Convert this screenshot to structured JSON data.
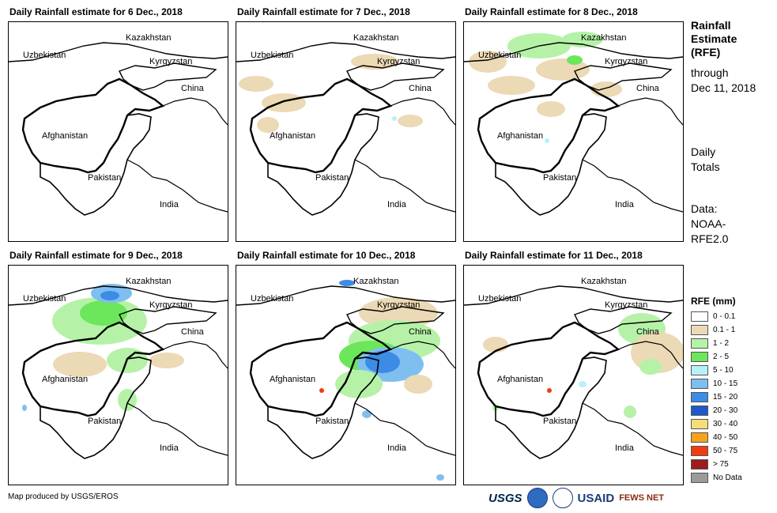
{
  "panels": [
    {
      "title": "Daily Rainfall estimate for 6 Dec., 2018"
    },
    {
      "title": "Daily Rainfall estimate for 7 Dec., 2018"
    },
    {
      "title": "Daily Rainfall estimate for 8 Dec., 2018"
    },
    {
      "title": "Daily Rainfall estimate for 9 Dec., 2018"
    },
    {
      "title": "Daily Rainfall estimate for 10 Dec., 2018"
    },
    {
      "title": "Daily Rainfall estimate for 11 Dec., 2018"
    }
  ],
  "places": {
    "kazakhstan": "Kazakhstan",
    "uzbekistan": "Uzbekistan",
    "kyrgyzstan": "Kyrgyzstan",
    "china": "China",
    "afghanistan": "Afghanistan",
    "pakistan": "Pakistan",
    "india": "India"
  },
  "sidebar": {
    "title_lines": [
      "Rainfall",
      "Estimate",
      "(RFE)"
    ],
    "through_lines": [
      "through",
      "Dec 11, 2018"
    ],
    "daily_lines": [
      "Daily",
      "Totals"
    ],
    "data_lines": [
      "Data:",
      "NOAA-",
      "RFE2.0"
    ]
  },
  "legend": {
    "title": "RFE (mm)",
    "items": [
      {
        "label": "0 - 0.1",
        "color": "#ffffff"
      },
      {
        "label": "0.1 - 1",
        "color": "#ecd9b5"
      },
      {
        "label": "1 - 2",
        "color": "#b5f2a8"
      },
      {
        "label": "2 - 5",
        "color": "#6ce65a"
      },
      {
        "label": "5 - 10",
        "color": "#b8f1fa"
      },
      {
        "label": "10 - 15",
        "color": "#7fbff0"
      },
      {
        "label": "15 - 20",
        "color": "#3c8ce6"
      },
      {
        "label": "20 - 30",
        "color": "#1e58cc"
      },
      {
        "label": "30 - 40",
        "color": "#f7dd7a"
      },
      {
        "label": "40 - 50",
        "color": "#f5a21e"
      },
      {
        "label": "50 - 75",
        "color": "#f03c14"
      },
      {
        "label": "> 75",
        "color": "#9e1c1c"
      },
      {
        "label": "No Data",
        "color": "#9b9b9b"
      }
    ]
  },
  "credit": "Map produced by USGS/EROS",
  "logos": {
    "usgs": "USGS",
    "usaid": "USAID",
    "fews": "FEWS NET"
  }
}
